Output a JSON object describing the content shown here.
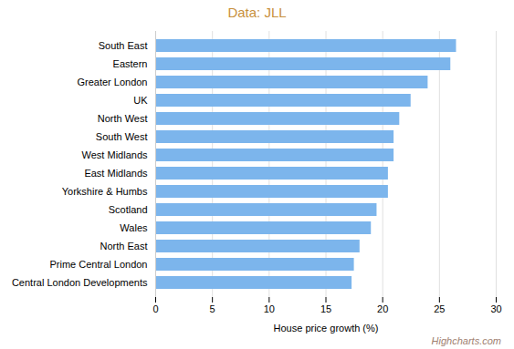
{
  "chart_data": {
    "type": "bar",
    "orientation": "horizontal",
    "title": "Data: JLL",
    "xlabel": "House price growth (%)",
    "categories": [
      "South East",
      "Eastern",
      "Greater London",
      "UK",
      "North West",
      "South West",
      "West Midlands",
      "East Midlands",
      "Yorkshire & Humbs",
      "Scotland",
      "Wales",
      "North East",
      "Prime Central London",
      "Central London Developments"
    ],
    "values": [
      26.5,
      26.0,
      24.0,
      22.5,
      21.5,
      21.0,
      21.0,
      20.5,
      20.5,
      19.5,
      19.0,
      18.0,
      17.5,
      17.3
    ],
    "color": "#7cb5ec",
    "xlim": [
      0,
      30
    ],
    "xticks": [
      0,
      5,
      10,
      15,
      20,
      25,
      30
    ],
    "grid": true,
    "annotations": [
      "Highcharts.com"
    ]
  }
}
